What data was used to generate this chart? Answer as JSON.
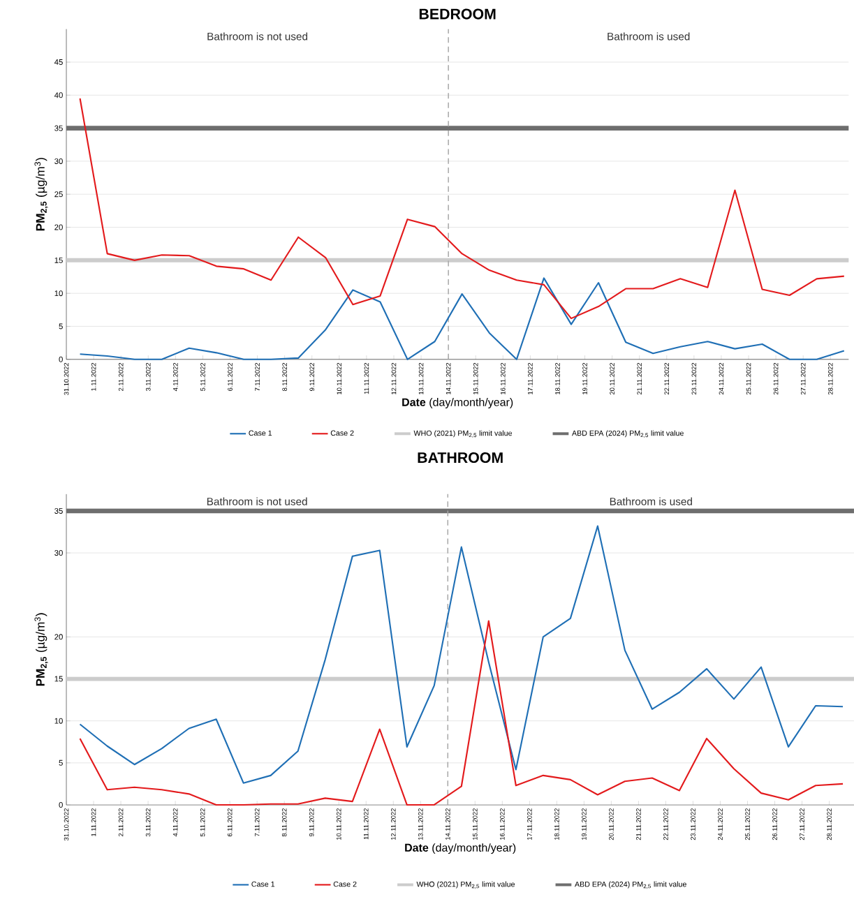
{
  "chart_data": [
    {
      "type": "line",
      "title": "BEDROOM",
      "xlabel": "**Date** (day/month/year)",
      "ylabel": "**PM$_{2,5}$** (µg/m$^{3}$)",
      "x": [
        "2022-10-31T12:00",
        "2022-11-01T12:00",
        "2022-11-02T12:00",
        "2022-11-03T12:00",
        "2022-11-04T12:00",
        "2022-11-05T12:00",
        "2022-11-06T12:00",
        "2022-11-07T12:00",
        "2022-11-08T12:00",
        "2022-11-09T12:00",
        "2022-11-10T12:00",
        "2022-11-11T12:00",
        "2022-11-12T12:00",
        "2022-11-13T12:00",
        "2022-11-14T12:00",
        "2022-11-15T12:00",
        "2022-11-16T12:00",
        "2022-11-17T12:00",
        "2022-11-18T12:00",
        "2022-11-19T12:00",
        "2022-11-20T12:00",
        "2022-11-21T12:00",
        "2022-11-22T12:00",
        "2022-11-23T12:00",
        "2022-11-24T12:00",
        "2022-11-25T12:00",
        "2022-11-26T12:00",
        "2022-11-27T12:00",
        "2022-11-28T12:00"
      ],
      "series": [
        {
          "name": "Case 1",
          "color": "#1f6fb5",
          "values": [
            0.8,
            0.5,
            0,
            0,
            1.7,
            1,
            0,
            0,
            0.2,
            4.5,
            10.5,
            8.7,
            0,
            2.7,
            9.9,
            4,
            0,
            12.3,
            5.3,
            11.6,
            2.6,
            0.9,
            1.9,
            2.7,
            1.6,
            2.3,
            0,
            0,
            1.3
          ]
        },
        {
          "name": "Case 2",
          "color": "#e31a1c",
          "values": [
            39.5,
            16,
            15,
            15.8,
            15.7,
            14.1,
            13.7,
            12,
            18.5,
            15.4,
            8.3,
            9.6,
            21.2,
            20.1,
            16,
            13.5,
            12,
            11.3,
            6.2,
            8,
            10.7,
            10.7,
            12.2,
            10.9,
            25.6,
            10.6,
            9.7,
            12.2,
            12.6
          ]
        }
      ],
      "ref_lines": [
        {
          "axis": "y",
          "value": 15,
          "label": "WHO (2021) PM$_{2,5}$ limit value",
          "color": "#cccccc"
        },
        {
          "axis": "y",
          "value": 35,
          "label": "ABD EPA (2024) PM$_{2,5}$ limit value",
          "color": "#6e6e6e"
        },
        {
          "axis": "x",
          "value": "2022-11-14",
          "color": "#a6a6a6",
          "line_style": "dashed"
        }
      ],
      "annotations": [
        "Bathroom is not used",
        "Bathroom is used"
      ],
      "xlim": [
        "2022-10-31",
        "2022-11-28T16:00"
      ],
      "ylim": [
        0,
        50
      ],
      "xticks": [
        {
          "value": "2022-10-31",
          "label": "31.10.2022"
        },
        {
          "value": "2022-11-01",
          "label": "1.11.2022"
        },
        {
          "value": "2022-11-02",
          "label": "2.11.2022"
        },
        {
          "value": "2022-11-03",
          "label": "3.11.2022"
        },
        {
          "value": "2022-11-04",
          "label": "4.11.2022"
        },
        {
          "value": "2022-11-05",
          "label": "5.11.2022"
        },
        {
          "value": "2022-11-06",
          "label": "6.11.2022"
        },
        {
          "value": "2022-11-07",
          "label": "7.11.2022"
        },
        {
          "value": "2022-11-08",
          "label": "8.11.2022"
        },
        {
          "value": "2022-11-09",
          "label": "9.11.2022"
        },
        {
          "value": "2022-11-10",
          "label": "10.11.2022"
        },
        {
          "value": "2022-11-11",
          "label": "11.11.2022"
        },
        {
          "value": "2022-11-12",
          "label": "12.11.2022"
        },
        {
          "value": "2022-11-13",
          "label": "13.11.2022"
        },
        {
          "value": "2022-11-14",
          "label": "14.11.2022"
        },
        {
          "value": "2022-11-15",
          "label": "15.11.2022"
        },
        {
          "value": "2022-11-16",
          "label": "16.11.2022"
        },
        {
          "value": "2022-11-17",
          "label": "17.11.2022"
        },
        {
          "value": "2022-11-18",
          "label": "18.11.2022"
        },
        {
          "value": "2022-11-19",
          "label": "19.11.2022"
        },
        {
          "value": "2022-11-20",
          "label": "20.11.2022"
        },
        {
          "value": "2022-11-21",
          "label": "21.11.2022"
        },
        {
          "value": "2022-11-22",
          "label": "22.11.2022"
        },
        {
          "value": "2022-11-23",
          "label": "23.11.2022"
        },
        {
          "value": "2022-11-24",
          "label": "24.11.2022"
        },
        {
          "value": "2022-11-25",
          "label": "25.11.2022"
        },
        {
          "value": "2022-11-26",
          "label": "26.11.2022"
        },
        {
          "value": "2022-11-27",
          "label": "27.11.2022"
        },
        {
          "value": "2022-11-28",
          "label": "28.11.2022"
        }
      ],
      "yticks": [
        0,
        5,
        10,
        15,
        20,
        25,
        30,
        35,
        40,
        45
      ],
      "grid": "y",
      "legend": "bottom",
      "marker": "none",
      "line_style": "solid"
    },
    {
      "type": "line",
      "title": "BATHROOM",
      "xlabel": "**Date** (day/month/year)",
      "ylabel": "**PM$_{2,5}$** (µg/m$^{3}$)",
      "x": [
        "2022-10-31T12:00",
        "2022-11-01T12:00",
        "2022-11-02T12:00",
        "2022-11-03T12:00",
        "2022-11-04T12:00",
        "2022-11-05T12:00",
        "2022-11-06T12:00",
        "2022-11-07T12:00",
        "2022-11-08T12:00",
        "2022-11-09T12:00",
        "2022-11-10T12:00",
        "2022-11-11T12:00",
        "2022-11-12T12:00",
        "2022-11-13T12:00",
        "2022-11-14T12:00",
        "2022-11-15T12:00",
        "2022-11-16T12:00",
        "2022-11-17T12:00",
        "2022-11-18T12:00",
        "2022-11-19T12:00",
        "2022-11-20T12:00",
        "2022-11-21T12:00",
        "2022-11-22T12:00",
        "2022-11-23T12:00",
        "2022-11-24T12:00",
        "2022-11-25T12:00",
        "2022-11-26T12:00",
        "2022-11-27T12:00",
        "2022-11-28T12:00"
      ],
      "series": [
        {
          "name": "Case 1",
          "color": "#1f6fb5",
          "values": [
            9.6,
            7,
            4.8,
            6.7,
            9.1,
            10.2,
            2.6,
            3.5,
            6.4,
            17.3,
            29.6,
            30.3,
            6.9,
            14.2,
            30.7,
            17,
            4.2,
            20,
            22.2,
            33.2,
            18.4,
            11.4,
            13.4,
            16.2,
            12.6,
            16.4,
            6.9,
            11.8,
            11.7
          ]
        },
        {
          "name": "Case 2",
          "color": "#e31a1c",
          "values": [
            7.9,
            1.8,
            2.1,
            1.8,
            1.3,
            0,
            0,
            0.1,
            0.1,
            0.8,
            0.4,
            9,
            0,
            0,
            2.2,
            21.9,
            2.3,
            3.5,
            3,
            1.2,
            2.8,
            3.2,
            1.7,
            7.9,
            4.3,
            1.4,
            0.6,
            2.3,
            2.5
          ]
        }
      ],
      "ref_lines": [
        {
          "axis": "y",
          "value": 15,
          "label": "WHO (2021) PM$_{2,5}$ limit value",
          "color": "#cccccc"
        },
        {
          "axis": "y",
          "value": 35,
          "label": "ABD EPA (2024) PM$_{2,5}$ limit value",
          "color": "#6e6e6e"
        },
        {
          "axis": "x",
          "value": "2022-11-14",
          "color": "#a6a6a6",
          "line_style": "dashed"
        }
      ],
      "annotations": [
        "Bathroom is not used",
        "Bathroom is used"
      ],
      "xlim": [
        "2022-10-31",
        "2022-11-28T22:00"
      ],
      "ylim": [
        0,
        37
      ],
      "xticks": [
        {
          "value": "2022-10-31",
          "label": "31.10.2022"
        },
        {
          "value": "2022-11-01",
          "label": "1.11.2022"
        },
        {
          "value": "2022-11-02",
          "label": "2.11.2022"
        },
        {
          "value": "2022-11-03",
          "label": "3.11.2022"
        },
        {
          "value": "2022-11-04",
          "label": "4.11.2022"
        },
        {
          "value": "2022-11-05",
          "label": "5.11.2022"
        },
        {
          "value": "2022-11-06",
          "label": "6.11.2022"
        },
        {
          "value": "2022-11-07",
          "label": "7.11.2022"
        },
        {
          "value": "2022-11-08",
          "label": "8.11.2022"
        },
        {
          "value": "2022-11-09",
          "label": "9.11.2022"
        },
        {
          "value": "2022-11-10",
          "label": "10.11.2022"
        },
        {
          "value": "2022-11-11",
          "label": "11.11.2022"
        },
        {
          "value": "2022-11-12",
          "label": "12.11.2022"
        },
        {
          "value": "2022-11-13",
          "label": "13.11.2022"
        },
        {
          "value": "2022-11-14",
          "label": "14.11.2022"
        },
        {
          "value": "2022-11-15",
          "label": "15.11.2022"
        },
        {
          "value": "2022-11-16",
          "label": "16.11.2022"
        },
        {
          "value": "2022-11-17",
          "label": "17.11.2022"
        },
        {
          "value": "2022-11-18",
          "label": "18.11.2022"
        },
        {
          "value": "2022-11-19",
          "label": "19.11.2022"
        },
        {
          "value": "2022-11-20",
          "label": "20.11.2022"
        },
        {
          "value": "2022-11-21",
          "label": "21.11.2022"
        },
        {
          "value": "2022-11-22",
          "label": "22.11.2022"
        },
        {
          "value": "2022-11-23",
          "label": "23.11.2022"
        },
        {
          "value": "2022-11-24",
          "label": "24.11.2022"
        },
        {
          "value": "2022-11-25",
          "label": "25.11.2022"
        },
        {
          "value": "2022-11-26",
          "label": "26.11.2022"
        },
        {
          "value": "2022-11-27",
          "label": "27.11.2022"
        },
        {
          "value": "2022-11-28",
          "label": "28.11.2022"
        }
      ],
      "yticks": [
        0,
        5,
        10,
        15,
        20,
        30,
        35
      ],
      "grid": "y",
      "legend": "bottom",
      "marker": "none",
      "line_style": "solid"
    }
  ]
}
